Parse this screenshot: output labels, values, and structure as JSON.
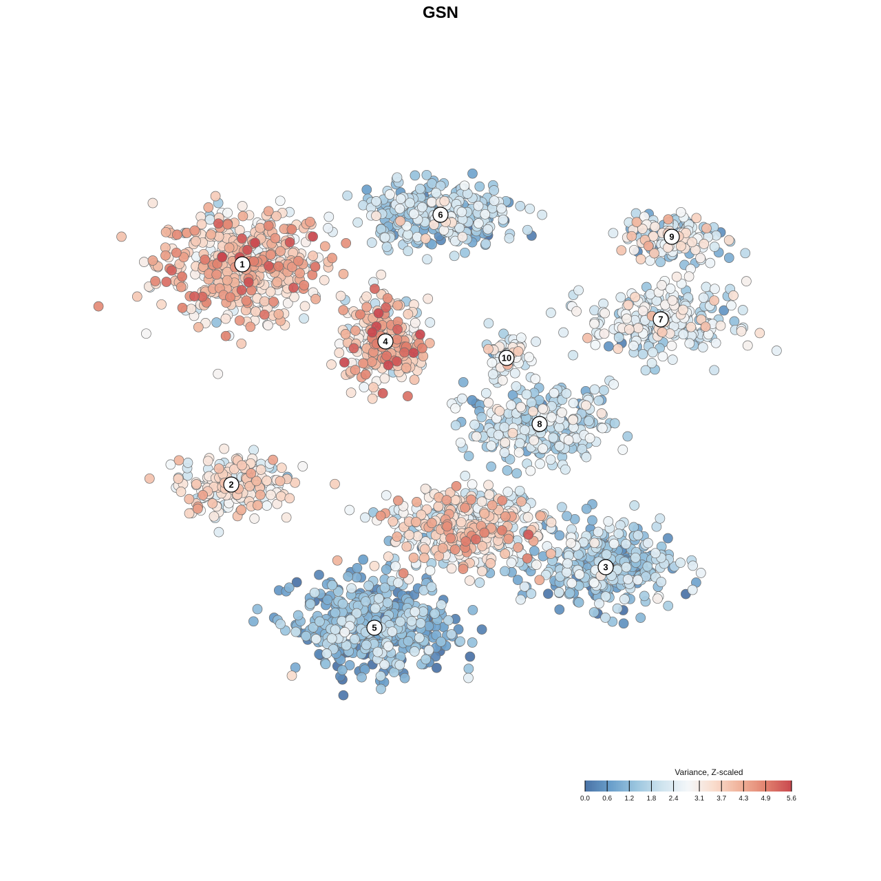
{
  "chart_data": {
    "type": "scatter",
    "title": "GSN",
    "xlabel": "",
    "ylabel": "",
    "grid": false,
    "legend_position": "bottom-right",
    "colorbar": {
      "title": "Variance, Z-scaled",
      "min": 0.0,
      "max": 5.6,
      "ticks": [
        0.0,
        0.6,
        1.2,
        1.8,
        2.4,
        3.1,
        3.7,
        4.3,
        4.9,
        5.6
      ],
      "tick_labels": [
        "0.0",
        "0.6",
        "1.2",
        "1.8",
        "2.4",
        "3.1",
        "3.7",
        "4.3",
        "4.9",
        "5.6"
      ],
      "palette": [
        "#4a72a6",
        "#6a9fcb",
        "#9cc6df",
        "#d0e4ef",
        "#f4f7f9",
        "#f9dccd",
        "#f0b29a",
        "#e1826f",
        "#c9484f"
      ]
    },
    "clusters": [
      {
        "id": "1",
        "label": "1",
        "center": [
          -36,
          32
        ],
        "spread": [
          14,
          9
        ],
        "n": 480,
        "value_mean": 3.6,
        "value_sd": 0.8
      },
      {
        "id": "2",
        "label": "2",
        "center": [
          -38,
          -8
        ],
        "spread": [
          9,
          5
        ],
        "n": 200,
        "value_mean": 2.9,
        "value_sd": 0.7
      },
      {
        "id": "3",
        "label": "3",
        "center": [
          30,
          -23
        ],
        "spread": [
          11,
          7
        ],
        "n": 330,
        "value_mean": 1.3,
        "value_sd": 0.7
      },
      {
        "id": "4",
        "label": "4",
        "center": [
          -10,
          18
        ],
        "spread": [
          7,
          7
        ],
        "n": 250,
        "value_mean": 3.5,
        "value_sd": 1.0
      },
      {
        "id": "5",
        "label": "5",
        "center": [
          -12,
          -34
        ],
        "spread": [
          13,
          8
        ],
        "n": 450,
        "value_mean": 1.0,
        "value_sd": 0.7
      },
      {
        "id": "6",
        "label": "6",
        "center": [
          0,
          41
        ],
        "spread": [
          13,
          5
        ],
        "n": 320,
        "value_mean": 1.6,
        "value_sd": 0.7
      },
      {
        "id": "7",
        "label": "7",
        "center": [
          40,
          22
        ],
        "spread": [
          12,
          6
        ],
        "n": 260,
        "value_mean": 2.2,
        "value_sd": 0.7
      },
      {
        "id": "8",
        "label": "8",
        "center": [
          18,
          3
        ],
        "spread": [
          12,
          6
        ],
        "n": 260,
        "value_mean": 1.8,
        "value_sd": 0.7
      },
      {
        "id": "9",
        "label": "9",
        "center": [
          42,
          37
        ],
        "spread": [
          8,
          4
        ],
        "n": 150,
        "value_mean": 2.1,
        "value_sd": 1.0
      },
      {
        "id": "10",
        "label": "10",
        "center": [
          12,
          15
        ],
        "spread": [
          4,
          4
        ],
        "n": 60,
        "value_mean": 2.3,
        "value_sd": 0.7
      },
      {
        "id": "",
        "label": "",
        "center": [
          5,
          -16
        ],
        "spread": [
          13,
          7
        ],
        "n": 420,
        "value_mean": 2.9,
        "value_sd": 0.9
      }
    ]
  }
}
